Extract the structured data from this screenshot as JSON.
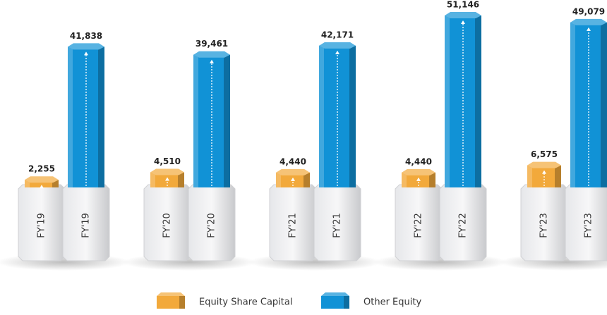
{
  "chart_data": {
    "type": "bar",
    "categories": [
      "FY'19",
      "FY'20",
      "FY'21",
      "FY'22",
      "FY'23"
    ],
    "series": [
      {
        "name": "Equity Share Capital",
        "color": "#f2a93b",
        "values": [
          2255,
          4510,
          4440,
          4440,
          6575
        ],
        "value_labels": [
          "2,255",
          "4,510",
          "4,440",
          "4,440",
          "6,575"
        ]
      },
      {
        "name": "Other Equity",
        "color": "#1192d6",
        "values": [
          41838,
          39461,
          42171,
          51146,
          49079
        ],
        "value_labels": [
          "41,838",
          "39,461",
          "42,171",
          "51,146",
          "49,079"
        ]
      }
    ]
  }
}
